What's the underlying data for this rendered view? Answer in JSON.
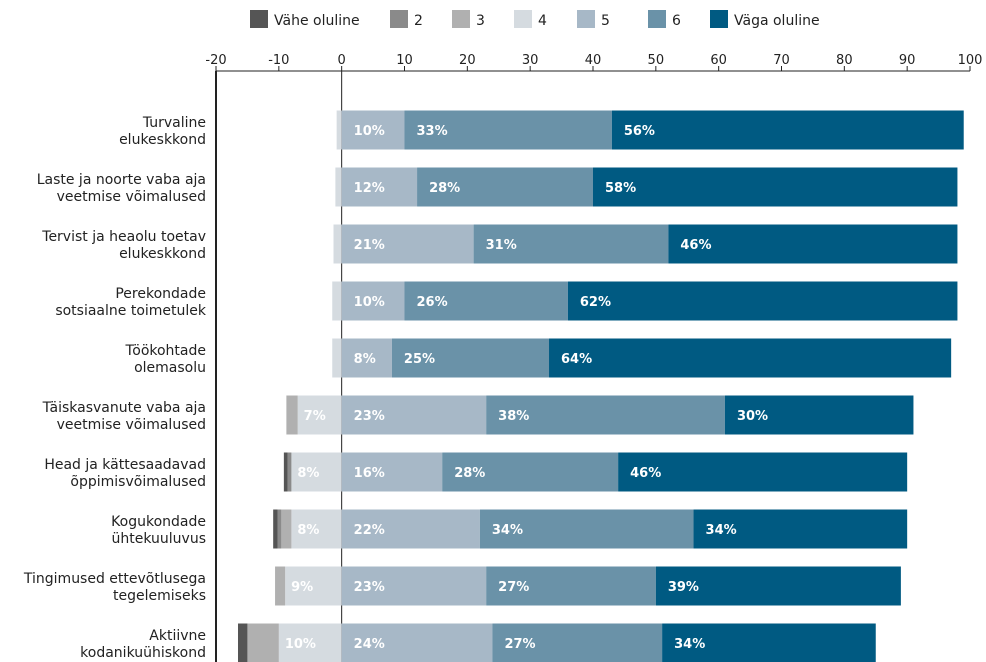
{
  "chart_data": {
    "type": "bar",
    "orientation": "horizontal",
    "stacked": "diverging",
    "title": "",
    "xlabel": "",
    "ylabel": "",
    "xlim": [
      -20,
      100
    ],
    "x_ticks": [
      "-20",
      "-10",
      "0",
      "10",
      "20",
      "30",
      "40",
      "50",
      "60",
      "70",
      "80",
      "90",
      "100"
    ],
    "x_axis_position": "top",
    "grid": false,
    "legend_position": "top",
    "categories": [
      [
        "Turvaline",
        "elukeskkond"
      ],
      [
        "Laste ja noorte vaba aja",
        "veetmise võimalused"
      ],
      [
        "Tervist ja heaolu toetav",
        "elukeskkond"
      ],
      [
        "Perekondade",
        "sotsiaalne toimetulek"
      ],
      [
        "Töökohtade",
        "olemasolu"
      ],
      [
        "Täiskasvanute vaba aja",
        "veetmise võimalused"
      ],
      [
        "Head ja kättesaadavad",
        "õppimisvõimalused"
      ],
      [
        "Kogukondade",
        "ühtekuuluvus"
      ],
      [
        "Tingimused ettevõtlusega",
        "tegelemiseks"
      ],
      [
        "Aktiivne",
        "kodanikuühiskond"
      ]
    ],
    "negative_series": [
      "Vähe oluline",
      "2",
      "3",
      "4"
    ],
    "series": [
      {
        "name": "Vähe oluline",
        "color": "#555555",
        "values": [
          0,
          0,
          0,
          0,
          0,
          0,
          0.6,
          0.7,
          0,
          1.5
        ]
      },
      {
        "name": "2",
        "color": "#8a8a8a",
        "values": [
          0,
          0,
          0,
          0,
          0,
          0,
          0.6,
          0.6,
          0,
          0
        ]
      },
      {
        "name": "3",
        "color": "#b0b0b0",
        "values": [
          0,
          0,
          0,
          0,
          0,
          1.8,
          0,
          1.6,
          1.6,
          5
        ]
      },
      {
        "name": "4",
        "color": "#d5dbe0",
        "values": [
          0.8,
          1,
          1.3,
          1.5,
          1.5,
          7,
          8,
          8,
          9,
          10
        ]
      },
      {
        "name": "5",
        "color": "#a7b8c7",
        "values": [
          10,
          12,
          21,
          10,
          8,
          23,
          16,
          22,
          23,
          24
        ]
      },
      {
        "name": "6",
        "color": "#6a92a8",
        "values": [
          33,
          28,
          31,
          26,
          25,
          38,
          28,
          34,
          27,
          27
        ]
      },
      {
        "name": "Väga oluline",
        "color": "#005a82",
        "values": [
          56,
          58,
          46,
          62,
          64,
          30,
          46,
          34,
          39,
          34
        ]
      }
    ],
    "data_labels": [
      {
        "series": "4",
        "labels": [
          "",
          "",
          "",
          "",
          "",
          "7%",
          "8%",
          "8%",
          "9%",
          "10%"
        ]
      },
      {
        "series": "5",
        "labels": [
          "10%",
          "12%",
          "21%",
          "10%",
          "8%",
          "23%",
          "16%",
          "22%",
          "23%",
          "24%"
        ]
      },
      {
        "series": "6",
        "labels": [
          "33%",
          "28%",
          "31%",
          "26%",
          "25%",
          "38%",
          "28%",
          "34%",
          "27%",
          "27%"
        ]
      },
      {
        "series": "Väga oluline",
        "labels": [
          "56%",
          "58%",
          "46%",
          "62%",
          "64%",
          "30%",
          "46%",
          "34%",
          "39%",
          "34%"
        ]
      }
    ]
  }
}
